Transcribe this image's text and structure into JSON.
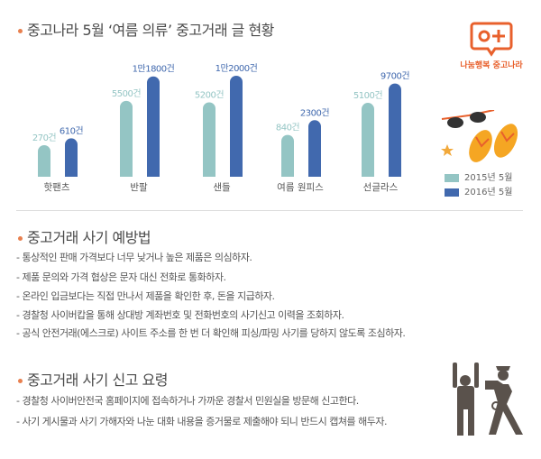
{
  "logo": {
    "text": "나눔행복 중고나라",
    "icon": "speech-bubble-o-plus-icon",
    "color": "#e8602c"
  },
  "chart_data": {
    "type": "bar",
    "title": "중고나라 5월 ‘여름 의류’ 중고거래 글 현황",
    "categories": [
      "핫팬츠",
      "반팔",
      "샌들",
      "여름 원피스",
      "선글라스"
    ],
    "series": [
      {
        "name": "2015년 5월",
        "color": "#94c5c4",
        "values": [
          270,
          5500,
          5200,
          840,
          5100
        ],
        "labels": [
          "270건",
          "5500건",
          "5200건",
          "840건",
          "5100건"
        ]
      },
      {
        "name": "2016년 5월",
        "color": "#4169ae",
        "values": [
          610,
          11800,
          12000,
          2300,
          9700
        ],
        "labels": [
          "610건",
          "1만1800건",
          "1만2000건",
          "2300건",
          "9700건"
        ]
      }
    ],
    "legend": "bottom-right"
  },
  "prevention": {
    "title": "중고거래 사기 예방법",
    "items": [
      "- 통상적인 판매 가격보다 너무 낮거나 높은 제품은 의심하자.",
      "- 제품 문의와 가격 협상은 문자 대신 전화로 통화하자.",
      "- 온라인 입금보다는 직접 만나서 제품을 확인한 후, 돈을 지급하자.",
      "- 경찰청 사이버캅을 통해 상대방 계좌번호 및 전화번호의 사기신고 이력을 조회하자.",
      "- 공식 안전거래(에스크로) 사이트 주소를 한 번 더 확인해 피싱/파밍 사기를 당하지 않도록 조심하자."
    ]
  },
  "report": {
    "title": "중고거래 사기 신고 요령",
    "items": [
      "- 경찰청 사이버안전국 홈페이지에 접속하거나 가까운 경찰서 민원실을 방문해 신고한다.",
      "- 사기 게시물과 사기 가해자와 나눈 대화 내용을 증거물로 제출해야 되니 반드시 캡쳐를 해두자."
    ]
  }
}
